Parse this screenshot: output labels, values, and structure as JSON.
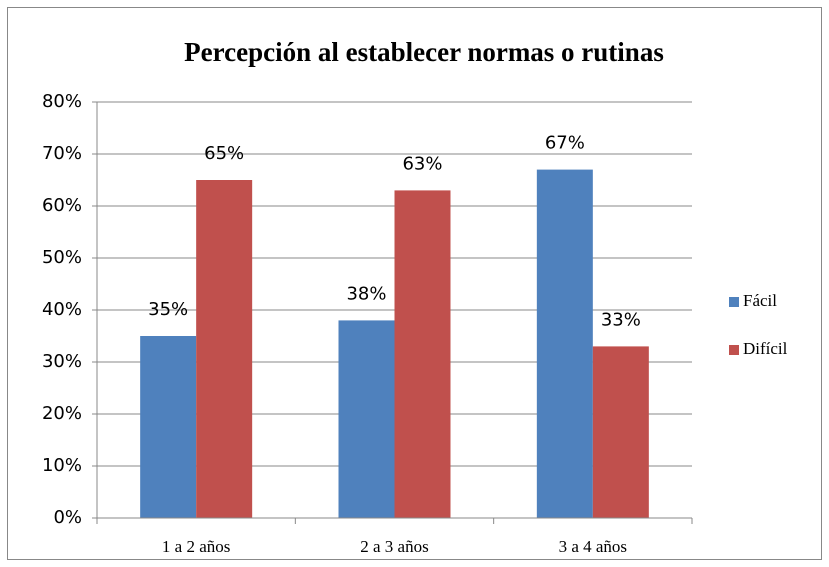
{
  "chart_data": {
    "type": "bar",
    "title": "Percepción al establecer normas o rutinas",
    "categories": [
      "1 a 2 años",
      "2 a 3 años",
      "3 a 4 años"
    ],
    "series": [
      {
        "name": "Fácil",
        "color": "#4f81bd",
        "values": [
          35,
          38,
          67
        ],
        "value_labels": [
          "35%",
          "38%",
          "67%"
        ]
      },
      {
        "name": "Difícil",
        "color": "#c0504d",
        "values": [
          65,
          63,
          33
        ],
        "value_labels": [
          "65%",
          "63%",
          "33%"
        ]
      }
    ],
    "ylim": [
      0,
      80
    ],
    "yticks": [
      {
        "value": 0,
        "label": "0%"
      },
      {
        "value": 10,
        "label": "10%"
      },
      {
        "value": 20,
        "label": "20%"
      },
      {
        "value": 30,
        "label": "30%"
      },
      {
        "value": 40,
        "label": "40%"
      },
      {
        "value": 50,
        "label": "50%"
      },
      {
        "value": 60,
        "label": "60%"
      },
      {
        "value": 70,
        "label": "70%"
      },
      {
        "value": 80,
        "label": "80%"
      }
    ],
    "grid": true,
    "legend": "right"
  }
}
